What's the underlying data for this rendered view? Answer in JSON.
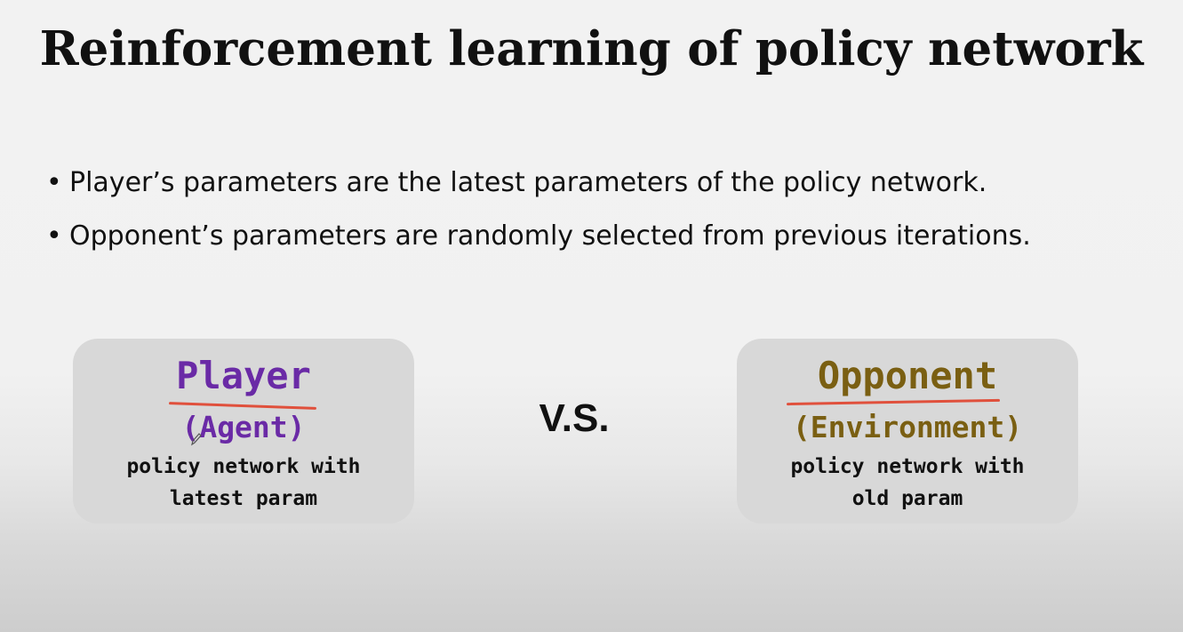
{
  "slide": {
    "title": "Reinforcement learning of policy network",
    "bullets": [
      "Player’s parameters are the latest parameters of the policy network.",
      "Opponent’s parameters are randomly selected from previous iterations."
    ],
    "bullet_glyph": "•",
    "vs_label": "V.S."
  },
  "player_card": {
    "title": "Player",
    "subtitle": "(Agent)",
    "desc_line1": "policy network with",
    "desc_line2": "latest param",
    "title_color": "#6a2aa6",
    "subtitle_color": "#6a2aa6"
  },
  "opponent_card": {
    "title": "Opponent",
    "subtitle": "(Environment)",
    "desc_line1": "policy network with",
    "desc_line2": "old param",
    "title_color": "#7a5f12",
    "subtitle_color": "#7a5f12"
  },
  "annotations": {
    "underline_color": "#e0503c",
    "cursor_icon": "pen-cursor-icon"
  }
}
